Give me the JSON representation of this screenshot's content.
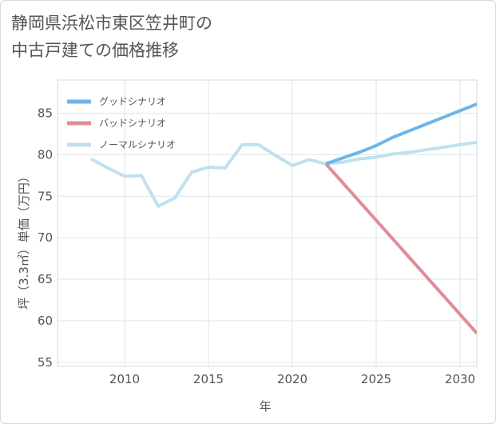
{
  "title_line1": "静岡県浜松市東区笠井町の",
  "title_line2": "中古戸建ての価格推移",
  "chart_data": {
    "type": "line",
    "xlabel": "年",
    "ylabel": "坪（3.3㎡）単価（万円）",
    "xlim": [
      2006,
      2031
    ],
    "ylim": [
      54.5,
      89
    ],
    "xticks": [
      2010,
      2015,
      2020,
      2025,
      2030
    ],
    "yticks": [
      55,
      60,
      65,
      70,
      75,
      80,
      85
    ],
    "grid": true,
    "legend_position": "top-left",
    "series": [
      {
        "name": "グッドシナリオ",
        "color": "#6cb6e8",
        "x": [
          2022,
          2023,
          2024,
          2025,
          2026,
          2027,
          2028,
          2029,
          2030,
          2031
        ],
        "y": [
          78.9,
          79.6,
          80.3,
          81.1,
          82.1,
          82.9,
          83.7,
          84.5,
          85.3,
          86.1
        ]
      },
      {
        "name": "バッドシナリオ",
        "color": "#e08c96",
        "x": [
          2022,
          2031
        ],
        "y": [
          78.9,
          58.5
        ]
      },
      {
        "name": "ノーマルシナリオ",
        "color": "#c1e0ef",
        "x": [
          2008,
          2009,
          2010,
          2011,
          2012,
          2013,
          2014,
          2015,
          2016,
          2017,
          2018,
          2019,
          2020,
          2021,
          2022,
          2023,
          2024,
          2025,
          2026,
          2027,
          2028,
          2029,
          2030,
          2031
        ],
        "y": [
          79.5,
          78.4,
          77.4,
          77.5,
          73.8,
          74.8,
          77.9,
          78.5,
          78.4,
          81.2,
          81.2,
          79.9,
          78.7,
          79.4,
          78.9,
          79.1,
          79.5,
          79.7,
          80.1,
          80.3,
          80.6,
          80.9,
          81.2,
          81.5
        ]
      }
    ]
  }
}
